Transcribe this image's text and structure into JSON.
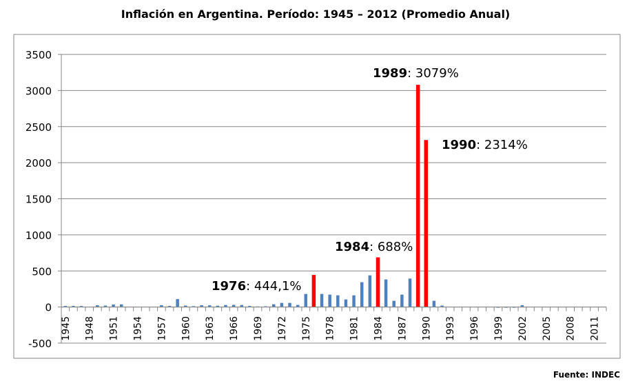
{
  "chart_data": {
    "type": "bar",
    "title": "Inflación en Argentina. Período: 1945 – 2012 (Promedio Anual)",
    "source": "Fuente: INDEC",
    "xlabel": "",
    "ylabel": "",
    "ylim": [
      -500,
      3500
    ],
    "yticks": [
      -500,
      0,
      500,
      1000,
      1500,
      2000,
      2500,
      3000,
      3500
    ],
    "grid": true,
    "colors": {
      "default": "#4f81bd",
      "highlight": "#ff0000",
      "grid": "#868686"
    },
    "categories": [
      1945,
      1946,
      1947,
      1948,
      1949,
      1950,
      1951,
      1952,
      1953,
      1954,
      1955,
      1956,
      1957,
      1958,
      1959,
      1960,
      1961,
      1962,
      1963,
      1964,
      1965,
      1966,
      1967,
      1968,
      1969,
      1970,
      1971,
      1972,
      1973,
      1974,
      1975,
      1976,
      1977,
      1978,
      1979,
      1980,
      1981,
      1982,
      1983,
      1984,
      1985,
      1986,
      1987,
      1988,
      1989,
      1990,
      1991,
      1992,
      1993,
      1994,
      1995,
      1996,
      1997,
      1998,
      1999,
      2000,
      2001,
      2002,
      2003,
      2004,
      2005,
      2006,
      2007,
      2008,
      2009,
      2010,
      2011,
      2012
    ],
    "xtick_labels": [
      "1945",
      "1948",
      "1951",
      "1954",
      "1957",
      "1960",
      "1963",
      "1966",
      "1969",
      "1972",
      "1975",
      "1978",
      "1981",
      "1984",
      "1987",
      "1990",
      "1993",
      "1996",
      "1999",
      "2002",
      "2005",
      "2008",
      "2011"
    ],
    "values": [
      15,
      15,
      14,
      0,
      25,
      20,
      35,
      37,
      0,
      0,
      0,
      0,
      25,
      15,
      110,
      20,
      12,
      25,
      24,
      18,
      28,
      30,
      28,
      15,
      8,
      10,
      38,
      57,
      57,
      29,
      181,
      444.1,
      181,
      172,
      162,
      105,
      162,
      344,
      439,
      688,
      382,
      86,
      172,
      394,
      3079,
      2314,
      86,
      20,
      0,
      0,
      0,
      0,
      0,
      0,
      -2,
      -2,
      -2,
      26,
      0,
      0,
      0,
      0,
      0,
      0,
      0,
      0,
      0,
      0
    ],
    "highlighted": [
      1976,
      1984,
      1989,
      1990
    ],
    "annotations": [
      {
        "year": "1976",
        "text": ": 444,1%"
      },
      {
        "year": "1984",
        "text": ": 688%"
      },
      {
        "year": "1989",
        "text": ": 3079%"
      },
      {
        "year": "1990",
        "text": ": 2314%"
      }
    ]
  }
}
